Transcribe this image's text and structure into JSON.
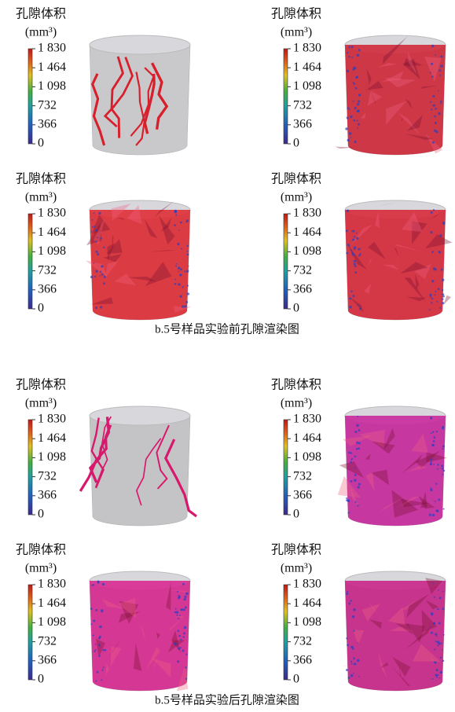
{
  "colorbar": {
    "title": "孔隙体积",
    "unit": "(mm³)",
    "lim": [
      0,
      1830
    ],
    "ticks": [
      0,
      366,
      732,
      {
        "value": 1098,
        "label": "1 098"
      },
      {
        "value": 1464,
        "label": "1 464"
      },
      {
        "value": 1830,
        "label": "1 830"
      }
    ]
  },
  "figures": [
    {
      "caption": "b.5号样品实验前孔隙渲染图",
      "panels": [
        {
          "body": "#c9c9cb",
          "pore": "#d8202c",
          "filled": false
        },
        {
          "body": "#b8b8c0",
          "pore": "#d02030",
          "filled": true
        },
        {
          "body": "#b8b8c0",
          "pore": "#e0242c",
          "filled": true
        },
        {
          "body": "#b8b8c0",
          "pore": "#d82030",
          "filled": true
        }
      ]
    },
    {
      "caption": "b.5号样品实验后孔隙渲染图",
      "panels": [
        {
          "body": "#c4c4c6",
          "pore": "#d8186c",
          "filled": false
        },
        {
          "body": "#b8b8c0",
          "pore": "#c8209a",
          "filled": true
        },
        {
          "body": "#b8b8c0",
          "pore": "#d8208c",
          "filled": true
        },
        {
          "body": "#b8b8c0",
          "pore": "#c81c84",
          "filled": true
        }
      ]
    }
  ]
}
